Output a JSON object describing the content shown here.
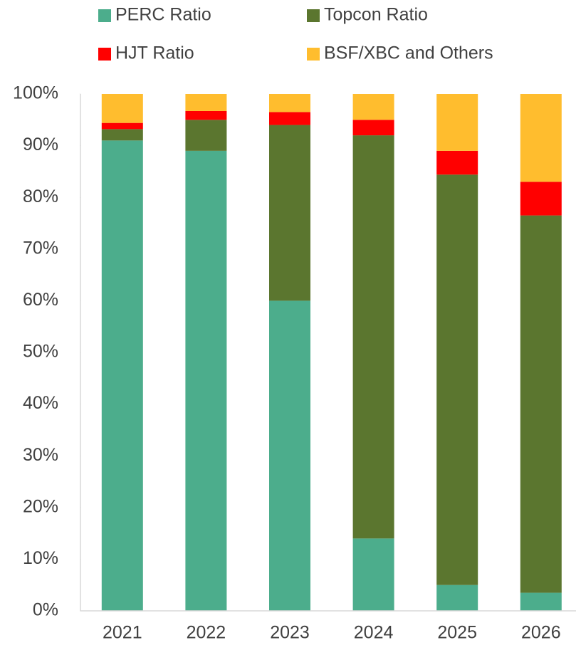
{
  "chart_data": {
    "type": "stacked_bar",
    "categories": [
      "2021",
      "2022",
      "2023",
      "2024",
      "2025",
      "2026"
    ],
    "series": [
      {
        "name": "PERC Ratio",
        "color": "#4cad8c",
        "values": [
          91,
          89,
          60,
          14,
          5,
          3.5
        ]
      },
      {
        "name": "Topcon Ratio",
        "color": "#5b762f",
        "values": [
          2.2,
          6,
          34,
          78,
          79.4,
          73
        ]
      },
      {
        "name": "HJT Ratio",
        "color": "#ff0000",
        "values": [
          1.2,
          1.7,
          2.5,
          3,
          4.6,
          6.5
        ]
      },
      {
        "name": "BSF/XBC and Others",
        "color": "#ffbd2e",
        "values": [
          5.6,
          3.3,
          3.5,
          5,
          11,
          17
        ]
      }
    ],
    "ylim": [
      0,
      100
    ],
    "yticks": [
      {
        "value": 0,
        "label": "0%"
      },
      {
        "value": 10,
        "label": "10%"
      },
      {
        "value": 20,
        "label": "20%"
      },
      {
        "value": 30,
        "label": "30%"
      },
      {
        "value": 40,
        "label": "40%"
      },
      {
        "value": 50,
        "label": "50%"
      },
      {
        "value": 60,
        "label": "60%"
      },
      {
        "value": 70,
        "label": "70%"
      },
      {
        "value": 80,
        "label": "80%"
      },
      {
        "value": 90,
        "label": "90%"
      },
      {
        "value": 100,
        "label": "100%"
      }
    ],
    "legend": "top"
  }
}
